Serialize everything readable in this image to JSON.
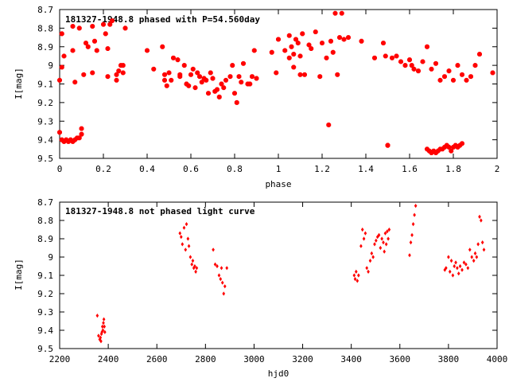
{
  "chart_data": [
    {
      "type": "scatter",
      "title": "181327-1948.8 phased with P=54.560day",
      "xlabel": "phase",
      "ylabel": "I[mag]",
      "xlim": [
        0,
        2
      ],
      "ylim": [
        9.5,
        8.7
      ],
      "y_inverted": true,
      "grid": false,
      "x_ticks": [
        "0",
        "0.2",
        "0.4",
        "0.6",
        "0.8",
        "1",
        "1.2",
        "1.4",
        "1.6",
        "1.8",
        "2"
      ],
      "x_tick_values": [
        0,
        0.2,
        0.4,
        0.6,
        0.8,
        1.0,
        1.2,
        1.4,
        1.6,
        1.8,
        2.0
      ],
      "y_ticks": [
        "8.7",
        "8.8",
        "8.9",
        "9",
        "9.1",
        "9.2",
        "9.3",
        "9.4",
        "9.5"
      ],
      "y_tick_values": [
        8.7,
        8.8,
        8.9,
        9.0,
        9.1,
        9.2,
        9.3,
        9.4,
        9.5
      ],
      "marker_color": "#ff0000",
      "series": [
        {
          "x": [
            0.0,
            0.01,
            0.02,
            0.03,
            0.04,
            0.05,
            0.06,
            0.07,
            0.08,
            0.09,
            0.1,
            0.1,
            0.01,
            0.02,
            0.06,
            0.07,
            0.09,
            0.12,
            0.13,
            0.15,
            0.16,
            0.17,
            0.2,
            0.21,
            0.22,
            0.23,
            0.24,
            0.26,
            0.27,
            0.28,
            0.29,
            0.3,
            0.0,
            0.01,
            0.06,
            0.11,
            0.15,
            0.22,
            0.26,
            0.29,
            0.4,
            0.43,
            0.47,
            0.48,
            0.49,
            0.5,
            0.51,
            0.52,
            0.54,
            0.55,
            0.57,
            0.58,
            0.6,
            0.61,
            0.62,
            0.64,
            0.65,
            0.66,
            0.68,
            0.69,
            0.7,
            0.72,
            0.73,
            0.74,
            0.76,
            0.78,
            0.8,
            0.81,
            0.82,
            0.84,
            0.86,
            0.88,
            0.89,
            0.9,
            0.48,
            0.55,
            0.59,
            0.63,
            0.67,
            0.71,
            0.75,
            0.79,
            0.83,
            0.87,
            0.97,
            0.99,
            1.0,
            1.03,
            1.05,
            1.06,
            1.07,
            1.08,
            1.09,
            1.1,
            1.11,
            1.12,
            1.14,
            1.17,
            1.2,
            1.22,
            1.24,
            1.26,
            1.27,
            1.28,
            1.29,
            1.3,
            1.32,
            1.38,
            1.05,
            1.07,
            1.1,
            1.15,
            1.19,
            1.25,
            1.23,
            1.44,
            1.48,
            1.49,
            1.5,
            1.52,
            1.54,
            1.56,
            1.58,
            1.6,
            1.61,
            1.62,
            1.64,
            1.66,
            1.68,
            1.7,
            1.72,
            1.74,
            1.76,
            1.78,
            1.8,
            1.82,
            1.84,
            1.86,
            1.88,
            1.9,
            1.92,
            1.98,
            1.5,
            1.68,
            1.69,
            1.7,
            1.71,
            1.72,
            1.73,
            1.74,
            1.75,
            1.76,
            1.77,
            1.78,
            1.79,
            1.8,
            1.81,
            1.82,
            1.83,
            1.84
          ],
          "y": [
            9.36,
            9.4,
            9.41,
            9.4,
            9.41,
            9.4,
            9.41,
            9.4,
            9.39,
            9.39,
            9.37,
            9.34,
            8.83,
            8.95,
            8.79,
            9.09,
            8.8,
            8.88,
            8.9,
            8.79,
            8.87,
            8.92,
            8.78,
            8.83,
            8.91,
            8.78,
            8.76,
            9.05,
            9.03,
            9.0,
            9.0,
            8.8,
            9.08,
            9.01,
            8.92,
            9.05,
            9.04,
            9.06,
            9.08,
            9.04,
            8.92,
            9.02,
            8.9,
            9.05,
            9.11,
            9.04,
            9.08,
            8.96,
            8.97,
            9.06,
            9.0,
            9.1,
            9.05,
            9.02,
            9.12,
            9.06,
            9.09,
            9.07,
            9.15,
            9.04,
            9.07,
            9.13,
            9.17,
            9.1,
            9.08,
            9.06,
            9.15,
            9.2,
            9.06,
            8.99,
            9.1,
            9.06,
            8.92,
            9.07,
            9.08,
            9.05,
            9.11,
            9.04,
            9.08,
            9.14,
            9.12,
            9.0,
            9.09,
            9.1,
            8.93,
            9.04,
            8.86,
            8.92,
            8.84,
            8.9,
            8.94,
            8.86,
            8.88,
            8.95,
            8.83,
            9.05,
            8.89,
            8.82,
            8.88,
            8.96,
            8.87,
            8.72,
            9.05,
            8.85,
            8.72,
            8.86,
            8.85,
            8.87,
            8.96,
            9.01,
            9.05,
            8.91,
            9.06,
            8.93,
            9.32,
            8.96,
            8.88,
            8.95,
            9.43,
            8.96,
            8.95,
            8.98,
            9.0,
            8.97,
            9.0,
            9.02,
            9.03,
            8.98,
            8.9,
            9.02,
            8.99,
            9.08,
            9.06,
            9.03,
            9.08,
            9.0,
            9.05,
            9.08,
            9.06,
            9.0,
            8.94,
            9.04,
            9.43,
            9.45,
            9.46,
            9.47,
            9.46,
            9.47,
            9.46,
            9.45,
            9.45,
            9.44,
            9.43,
            9.44,
            9.46,
            9.44,
            9.43,
            9.44,
            9.43,
            9.42
          ]
        }
      ]
    },
    {
      "type": "scatter",
      "title": "181327-1948.8 not phased light curve",
      "xlabel": "hjd0",
      "ylabel": "I[mag]",
      "xlim": [
        2200,
        4000
      ],
      "ylim": [
        9.5,
        8.7
      ],
      "y_inverted": true,
      "grid": false,
      "x_ticks": [
        "2200",
        "2400",
        "2600",
        "2800",
        "3000",
        "3200",
        "3400",
        "3600",
        "3800",
        "4000"
      ],
      "x_tick_values": [
        2200,
        2400,
        2600,
        2800,
        3000,
        3200,
        3400,
        3600,
        3800,
        4000
      ],
      "y_ticks": [
        "8.7",
        "8.8",
        "8.9",
        "9",
        "9.1",
        "9.2",
        "9.3",
        "9.4",
        "9.5"
      ],
      "y_tick_values": [
        8.7,
        8.8,
        8.9,
        9.0,
        9.1,
        9.2,
        9.3,
        9.4,
        9.5
      ],
      "marker_color": "#ff0000",
      "series": [
        {
          "x": [
            2355,
            2360,
            2365,
            2368,
            2370,
            2372,
            2374,
            2376,
            2378,
            2380,
            2382,
            2384,
            2386,
            2695,
            2700,
            2705,
            2712,
            2718,
            2722,
            2728,
            2732,
            2738,
            2744,
            2748,
            2752,
            2756,
            2760,
            2764,
            2832,
            2840,
            2848,
            2856,
            2862,
            2866,
            2870,
            2875,
            2880,
            2888,
            3412,
            3416,
            3420,
            3425,
            3430,
            3440,
            3446,
            3452,
            3458,
            3464,
            3470,
            3478,
            3484,
            3490,
            3496,
            3502,
            3508,
            3514,
            3520,
            3526,
            3532,
            3536,
            3540,
            3544,
            3548,
            3552,
            3556,
            3640,
            3645,
            3650,
            3655,
            3660,
            3665,
            3785,
            3790,
            3800,
            3806,
            3812,
            3818,
            3824,
            3830,
            3836,
            3842,
            3848,
            3856,
            3864,
            3872,
            3880,
            3888,
            3896,
            3904,
            3910,
            3916,
            3922,
            3928,
            3934,
            3940,
            3946
          ],
          "y": [
            9.32,
            9.43,
            9.45,
            9.44,
            9.46,
            9.42,
            9.41,
            9.38,
            9.4,
            9.36,
            9.34,
            9.38,
            9.41,
            8.87,
            8.89,
            8.93,
            8.84,
            8.96,
            8.82,
            8.9,
            8.94,
            9.0,
            9.04,
            9.02,
            9.06,
            9.05,
            9.08,
            9.06,
            8.96,
            9.04,
            9.05,
            9.1,
            9.12,
            9.06,
            9.14,
            9.2,
            9.16,
            9.06,
            9.1,
            9.12,
            9.08,
            9.13,
            9.1,
            8.94,
            8.85,
            8.9,
            8.87,
            9.06,
            9.08,
            9.02,
            8.98,
            9.0,
            8.93,
            8.91,
            8.89,
            8.88,
            8.95,
            8.9,
            8.92,
            8.97,
            8.87,
            8.93,
            8.86,
            8.9,
            8.85,
            8.99,
            8.92,
            8.88,
            8.82,
            8.77,
            8.72,
            9.07,
            9.06,
            9.0,
            9.08,
            9.02,
            9.1,
            9.05,
            9.03,
            9.06,
            9.09,
            9.05,
            9.07,
            9.03,
            9.04,
            9.06,
            8.96,
            9.0,
            9.02,
            8.98,
            9.0,
            8.93,
            8.78,
            8.8,
            8.92,
            8.96
          ]
        }
      ]
    }
  ]
}
